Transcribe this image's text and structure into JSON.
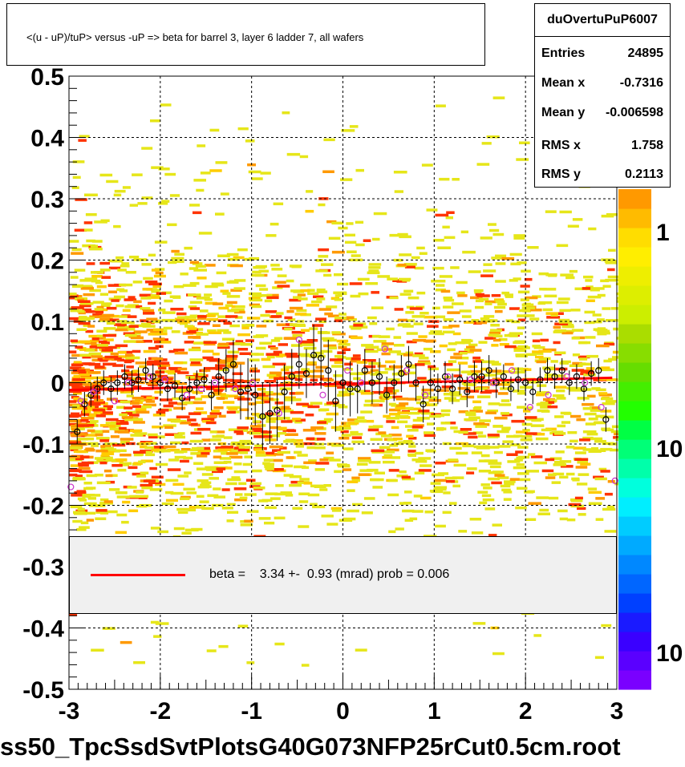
{
  "title": "<(u - uP)/tuP> versus  -uP => beta for barrel 3, layer 6 ladder 7, all wafers",
  "stats": {
    "name": "duOvertuPuP6007",
    "rows": [
      {
        "label": "Entries",
        "value": "24895"
      },
      {
        "label": "Mean x",
        "value": "-0.7316"
      },
      {
        "label": "Mean y",
        "value": "-0.006598"
      },
      {
        "label": "RMS x",
        "value": "1.758"
      },
      {
        "label": "RMS y",
        "value": "0.2113"
      }
    ]
  },
  "legend": {
    "text": "beta =    3.34 +-  0.93 (mrad) prob = 0.006",
    "line_color": "#ff0000"
  },
  "footer": "ss50_TpcSsdSvtPlotsG40G073NFP25rCut0.5cm.root",
  "colorbar": {
    "labels": [
      "1",
      "10",
      "10"
    ]
  },
  "chart_data": {
    "type": "scatter",
    "xlim": [
      -3,
      3
    ],
    "ylim": [
      -0.5,
      0.5
    ],
    "x_ticks": [
      "-3",
      "-2",
      "-1",
      "0",
      "1",
      "2",
      "3"
    ],
    "y_ticks": [
      "-0.5",
      "-0.4",
      "-0.3",
      "-0.2",
      "-0.1",
      "0",
      "0.1",
      "0.2",
      "0.3",
      "0.4",
      "0.5"
    ],
    "grid": true,
    "fit_line": {
      "x": [
        -3,
        2.95
      ],
      "y": [
        -0.012,
        0.008
      ],
      "color": "#ff0000"
    },
    "series": [
      {
        "marker": "open-circle",
        "color": "#000000",
        "x": [
          -2.91,
          -2.83,
          -2.76,
          -2.69,
          -2.62,
          -2.54,
          -2.47,
          -2.39,
          -2.31,
          -2.24,
          -2.16,
          -2.08,
          -2.0,
          -1.92,
          -1.84,
          -1.76,
          -1.68,
          -1.6,
          -1.52,
          -1.44,
          -1.36,
          -1.28,
          -1.2,
          -1.12,
          -1.04,
          -0.96,
          -0.88,
          -0.8,
          -0.72,
          -0.64,
          -0.56,
          -0.48,
          -0.4,
          -0.32,
          -0.24,
          -0.16,
          -0.08,
          0.0,
          0.08,
          0.16,
          0.24,
          0.32,
          0.4,
          0.48,
          0.56,
          0.64,
          0.72,
          0.8,
          0.88,
          0.96,
          1.04,
          1.12,
          1.2,
          1.28,
          1.36,
          1.44,
          1.52,
          1.6,
          1.68,
          1.76,
          1.84,
          1.92,
          2.0,
          2.08,
          2.16,
          2.24,
          2.32,
          2.4,
          2.48,
          2.56,
          2.64,
          2.72,
          2.8,
          2.88
        ],
        "y": [
          -0.08,
          -0.035,
          -0.02,
          -0.01,
          0.0,
          -0.01,
          0.0,
          0.01,
          0.0,
          0.005,
          0.02,
          0.01,
          0.0,
          -0.01,
          -0.005,
          -0.025,
          -0.01,
          0.0,
          0.005,
          -0.02,
          0.01,
          0.02,
          0.03,
          -0.015,
          -0.01,
          -0.02,
          -0.055,
          -0.05,
          -0.045,
          -0.015,
          0.01,
          0.03,
          0.015,
          0.045,
          0.04,
          0.02,
          -0.03,
          0.0,
          -0.01,
          -0.01,
          0.02,
          0.0,
          0.01,
          -0.02,
          0.0,
          0.015,
          0.03,
          0.0,
          -0.035,
          0.0,
          -0.01,
          0.01,
          -0.01,
          0.005,
          -0.015,
          0.01,
          0.01,
          0.02,
          0.0,
          0.01,
          -0.01,
          0.005,
          0.0,
          -0.015,
          0.005,
          0.02,
          0.01,
          0.02,
          0.0,
          0.01,
          -0.01,
          0.015,
          0.02,
          -0.06
        ],
        "y_err": [
          0.02,
          0.02,
          0.02,
          0.02,
          0.02,
          0.02,
          0.02,
          0.02,
          0.02,
          0.02,
          0.02,
          0.02,
          0.02,
          0.02,
          0.02,
          0.02,
          0.02,
          0.02,
          0.02,
          0.025,
          0.03,
          0.035,
          0.04,
          0.045,
          0.05,
          0.05,
          0.055,
          0.05,
          0.05,
          0.045,
          0.045,
          0.04,
          0.04,
          0.05,
          0.05,
          0.05,
          0.05,
          0.05,
          0.045,
          0.04,
          0.035,
          0.035,
          0.03,
          0.03,
          0.03,
          0.03,
          0.03,
          0.03,
          0.03,
          0.025,
          0.025,
          0.025,
          0.025,
          0.025,
          0.025,
          0.025,
          0.025,
          0.025,
          0.025,
          0.02,
          0.02,
          0.02,
          0.02,
          0.02,
          0.02,
          0.02,
          0.02,
          0.02,
          0.02,
          0.02,
          0.02,
          0.02,
          0.02,
          0.02
        ]
      },
      {
        "marker": "open-circle",
        "color": "#cc33cc",
        "x": [
          -2.98,
          -2.87,
          -2.73,
          -2.5,
          -2.35,
          -2.12,
          -1.95,
          -1.71,
          -1.55,
          -1.4,
          -1.18,
          -0.99,
          -0.7,
          -0.48,
          -0.22,
          0.05,
          0.2,
          0.46,
          0.7,
          0.9,
          1.15,
          1.4,
          1.65,
          1.85,
          2.05,
          2.25,
          2.45,
          2.65,
          2.83,
          2.98
        ],
        "y": [
          -0.17,
          -0.03,
          -0.015,
          -0.03,
          0.0,
          0.01,
          0.005,
          -0.02,
          -0.01,
          0.0,
          -0.01,
          0.0,
          -0.05,
          0.07,
          -0.02,
          0.02,
          0.0,
          0.055,
          0.02,
          -0.02,
          0.01,
          0.005,
          0.0,
          0.02,
          -0.04,
          -0.02,
          0.01,
          0.0,
          -0.04,
          -0.16
        ]
      }
    ]
  }
}
